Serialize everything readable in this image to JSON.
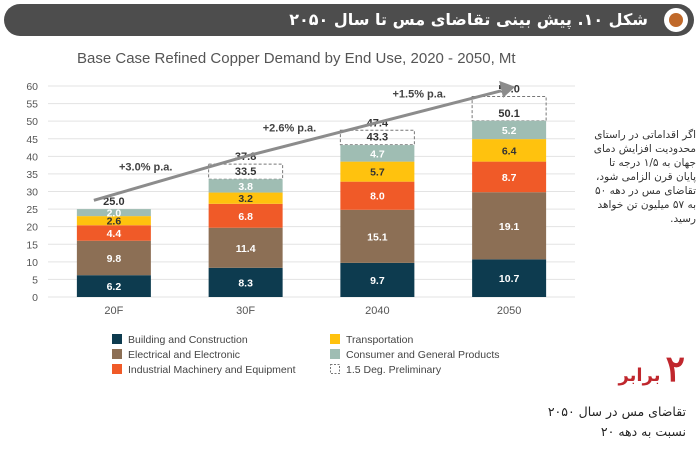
{
  "header": {
    "title": "شکل ۱۰. پیش بینی تقاضای مس تا سال ۲۰۵۰",
    "icon": "circle-bullet-icon"
  },
  "side_note": "اگر اقداماتی در راستای محدودیت افزایش دمای جهان به ۱/۵ درجه تا پایان قرن الزامی شود، تقاضای مس در دهه ۵۰ به ۵۷ میلیون تن خواهد رسید.",
  "highlight": {
    "number": "۲",
    "word": "برابر",
    "desc_line1": "تقاضای مس در سال ۲۰۵۰",
    "desc_line2": "نسبت به دهه ۲۰"
  },
  "chart_data": {
    "type": "bar",
    "title": "Base Case Refined Copper Demand by End Use, 2020 - 2050, Mt",
    "xlabel": "",
    "ylabel": "",
    "ylim": [
      0,
      60
    ],
    "yticks": [
      0,
      5,
      10,
      15,
      20,
      25,
      30,
      35,
      40,
      45,
      50,
      55,
      60
    ],
    "categories": [
      "20F",
      "30F",
      "2040",
      "2050"
    ],
    "stacked": true,
    "series": [
      {
        "name": "Building and Construction",
        "color": "#0d3b4f",
        "values": [
          6.2,
          8.3,
          9.7,
          10.7
        ]
      },
      {
        "name": "Electrical and Electronic",
        "color": "#8c6f55",
        "values": [
          9.8,
          11.4,
          15.1,
          19.1
        ]
      },
      {
        "name": "Industrial Machinery and Equipment",
        "color": "#f05a28",
        "values": [
          4.4,
          6.8,
          8.0,
          8.7
        ]
      },
      {
        "name": "Transportation",
        "color": "#ffc20e",
        "values": [
          2.6,
          3.2,
          5.7,
          6.4
        ]
      },
      {
        "name": "Consumer and General Products",
        "color": "#9fbdb3",
        "values": [
          2.0,
          3.8,
          4.7,
          5.2
        ]
      }
    ],
    "base_totals": [
      "25.0",
      "33.5",
      "43.3",
      "50.1"
    ],
    "preliminary_totals": [
      "",
      "37.8",
      "47.4",
      "57.0"
    ],
    "preliminary_values": [
      0,
      37.8,
      47.4,
      57.0
    ],
    "preliminary_series_name": "1.5 Deg. Preliminary",
    "growth_labels": [
      "+3.0% p.a.",
      "+2.6% p.a.",
      "+1.5% p.a."
    ],
    "grid": true,
    "legend_position": "bottom"
  }
}
